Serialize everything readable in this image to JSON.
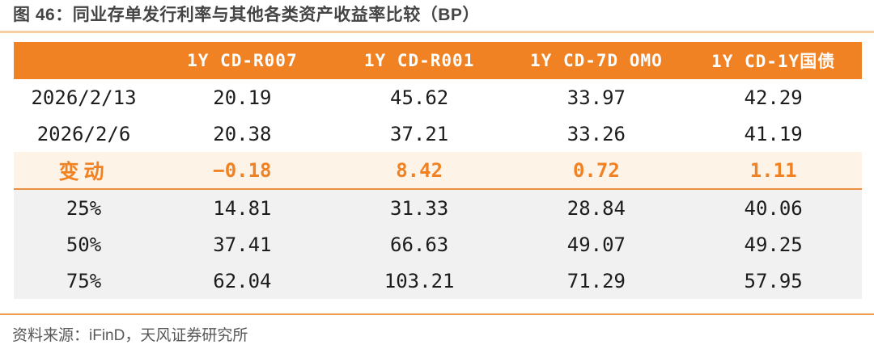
{
  "figure": {
    "caption": "图 46：同业存单发行利率与其他各类资产收益率比较（BP）",
    "source": "资料来源：iFinD，天风证券研究所"
  },
  "table": {
    "columns": [
      "",
      "1Y CD-R007",
      "1Y CD-R001",
      "1Y CD-7D OMO",
      "1Y CD-1Y国债"
    ],
    "rows": [
      {
        "label": "2026/2/13",
        "values": [
          "20.19",
          "45.62",
          "33.97",
          "42.29"
        ],
        "style": "plain"
      },
      {
        "label": "2026/2/6",
        "values": [
          "20.38",
          "37.21",
          "33.26",
          "41.19"
        ],
        "style": "plain"
      },
      {
        "label": "变动",
        "values": [
          "−0.18",
          "8.42",
          "0.72",
          "1.11"
        ],
        "style": "highlight"
      },
      {
        "label": "25%",
        "values": [
          "14.81",
          "31.33",
          "28.84",
          "40.06"
        ],
        "style": "gray"
      },
      {
        "label": "50%",
        "values": [
          "37.41",
          "66.63",
          "49.07",
          "49.25"
        ],
        "style": "gray"
      },
      {
        "label": "75%",
        "values": [
          "62.04",
          "103.21",
          "71.29",
          "57.95"
        ],
        "style": "gray"
      }
    ]
  },
  "colors": {
    "accent": "#F08223",
    "highlight-bg": "#FDF3E6",
    "highlight-line": "#EC8F3E",
    "gray-bg": "#F1F1F1",
    "caption-rule": "#F8CDA2",
    "source-rule": "#F09B4C",
    "text-dark": "#1C1C1C",
    "text-title": "#454545",
    "text-muted": "#585858"
  },
  "chart_data": {
    "type": "table",
    "title": "图 46：同业存单发行利率与其他各类资产收益率比较（BP）",
    "columns": [
      "1Y CD-R007",
      "1Y CD-R001",
      "1Y CD-7D OMO",
      "1Y CD-1Y国债"
    ],
    "row_labels": [
      "2026/2/13",
      "2026/2/6",
      "变动",
      "25%",
      "50%",
      "75%"
    ],
    "values": [
      [
        20.19,
        45.62,
        33.97,
        42.29
      ],
      [
        20.38,
        37.21,
        33.26,
        41.19
      ],
      [
        -0.18,
        8.42,
        0.72,
        1.11
      ],
      [
        14.81,
        31.33,
        28.84,
        40.06
      ],
      [
        37.41,
        66.63,
        49.07,
        49.25
      ],
      [
        62.04,
        103.21,
        71.29,
        57.95
      ]
    ],
    "source": "资料来源：iFinD，天风证券研究所"
  }
}
